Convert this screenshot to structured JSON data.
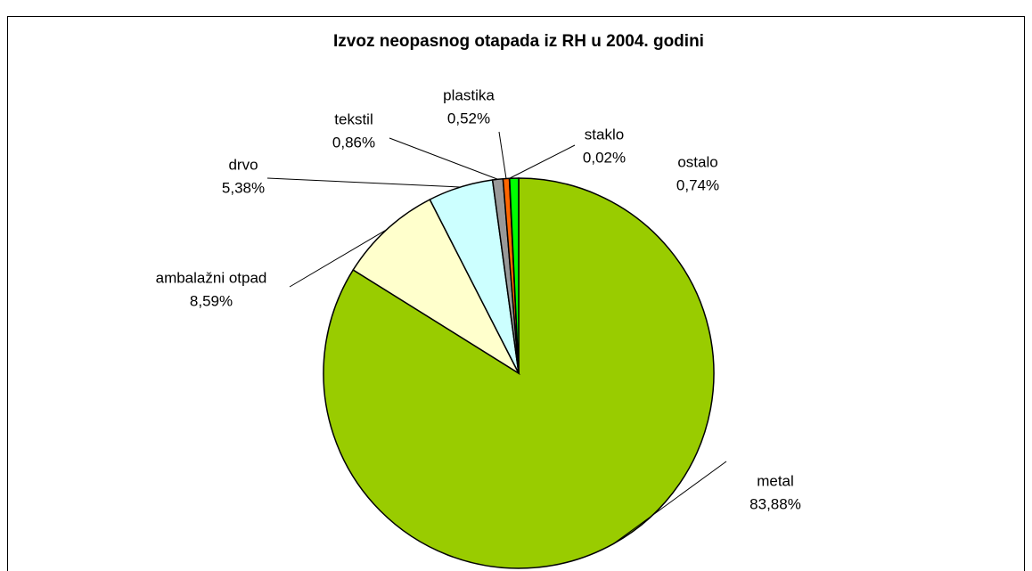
{
  "chart_data": {
    "type": "pie",
    "title": "Izvoz neopasnog otapada iz RH u 2004. godini",
    "categories": [
      "metal",
      "ambalažni otpad",
      "drvo",
      "tekstil",
      "plastika",
      "staklo",
      "ostalo"
    ],
    "values": [
      83.88,
      8.59,
      5.38,
      0.86,
      0.52,
      0.02,
      0.74
    ],
    "value_labels": [
      "83,88%",
      "8,59%",
      "5,38%",
      "0,86%",
      "0,52%",
      "0,02%",
      "0,74%"
    ],
    "colors": [
      "#99cc00",
      "#ffffcc",
      "#ccffff",
      "#999999",
      "#ff6600",
      "#ffcc00",
      "#00ff00"
    ]
  }
}
